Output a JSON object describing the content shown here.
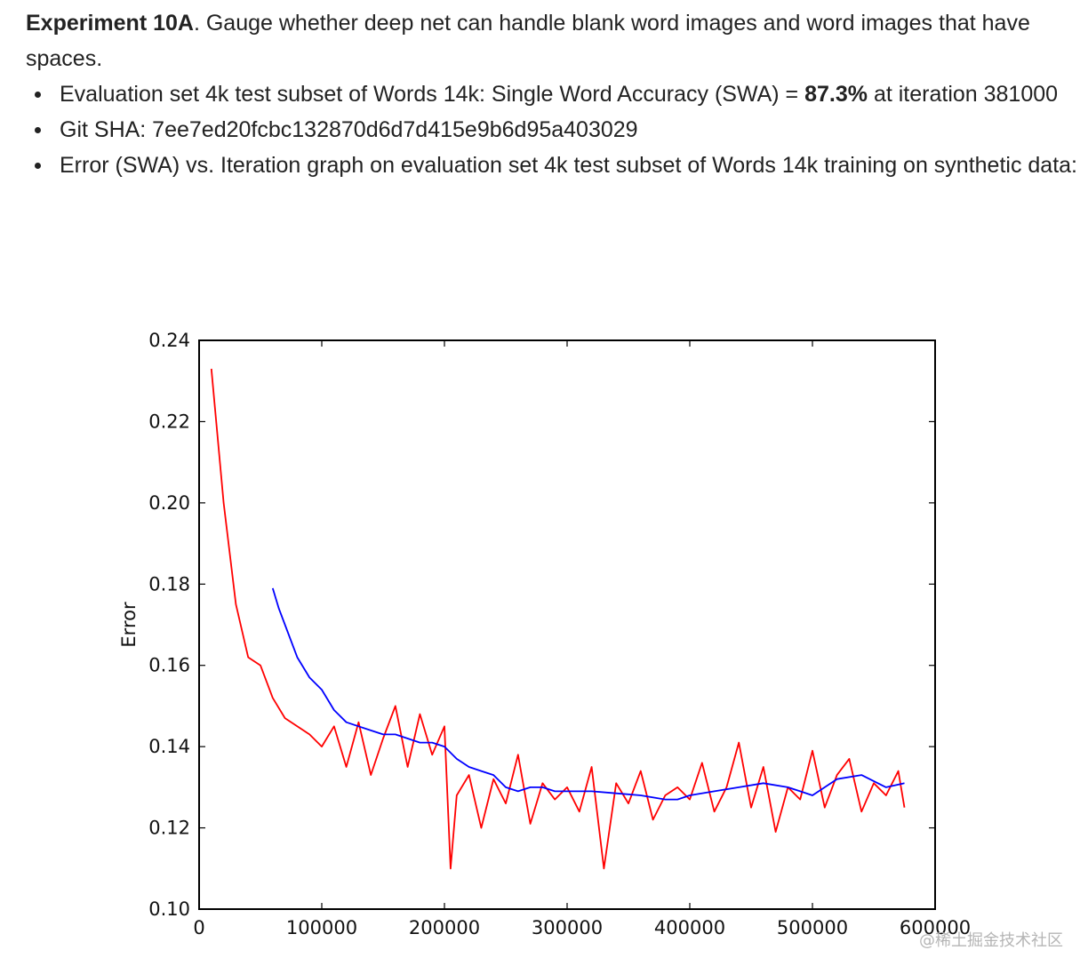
{
  "doc": {
    "heading_bold": "Experiment 10A",
    "heading_rest": ". Gauge whether deep net can handle blank word images and word images that have spaces.",
    "bullets": [
      {
        "text_before": "Evaluation set 4k test subset of Words 14k: Single Word Accuracy (SWA) = ",
        "bold": "87.3%",
        "text_after": "  at iteration 381000"
      },
      {
        "text": "Git SHA: 7ee7ed20fcbc132870d6d7d415e9b6d95a403029"
      },
      {
        "text": "Error (SWA) vs. Iteration graph on evaluation set 4k test subset of Words 14k training on synthetic data:"
      }
    ]
  },
  "chart_data": {
    "type": "line",
    "title": "",
    "xlabel": "",
    "ylabel": "Error",
    "xlim": [
      0,
      600000
    ],
    "ylim": [
      0.1,
      0.24
    ],
    "x_ticks": [
      "0",
      "100000",
      "200000",
      "300000",
      "400000",
      "500000",
      "600000"
    ],
    "y_ticks": [
      "0.10",
      "0.12",
      "0.14",
      "0.16",
      "0.18",
      "0.20",
      "0.22",
      "0.24"
    ],
    "grid": false,
    "legend": "none",
    "series": [
      {
        "color": "#ff0000",
        "x": [
          10000,
          20000,
          30000,
          40000,
          50000,
          60000,
          70000,
          80000,
          90000,
          100000,
          110000,
          120000,
          130000,
          140000,
          150000,
          160000,
          170000,
          180000,
          190000,
          200000,
          205000,
          210000,
          220000,
          230000,
          240000,
          250000,
          260000,
          270000,
          280000,
          290000,
          300000,
          310000,
          320000,
          330000,
          340000,
          350000,
          360000,
          370000,
          380000,
          390000,
          400000,
          410000,
          420000,
          430000,
          440000,
          450000,
          460000,
          470000,
          480000,
          490000,
          500000,
          510000,
          520000,
          530000,
          540000,
          550000,
          560000,
          570000,
          575000
        ],
        "y": [
          0.233,
          0.2,
          0.175,
          0.162,
          0.16,
          0.152,
          0.147,
          0.145,
          0.143,
          0.14,
          0.145,
          0.135,
          0.146,
          0.133,
          0.142,
          0.15,
          0.135,
          0.148,
          0.138,
          0.145,
          0.11,
          0.128,
          0.133,
          0.12,
          0.132,
          0.126,
          0.138,
          0.121,
          0.131,
          0.127,
          0.13,
          0.124,
          0.135,
          0.11,
          0.131,
          0.126,
          0.134,
          0.122,
          0.128,
          0.13,
          0.127,
          0.136,
          0.124,
          0.13,
          0.141,
          0.125,
          0.135,
          0.119,
          0.13,
          0.127,
          0.139,
          0.125,
          0.133,
          0.137,
          0.124,
          0.131,
          0.128,
          0.134,
          0.125
        ]
      },
      {
        "color": "#0000ff",
        "x": [
          60000,
          65000,
          70000,
          80000,
          90000,
          100000,
          110000,
          120000,
          130000,
          140000,
          150000,
          160000,
          170000,
          180000,
          190000,
          200000,
          210000,
          220000,
          230000,
          240000,
          250000,
          260000,
          270000,
          280000,
          290000,
          300000,
          320000,
          340000,
          360000,
          380000,
          390000,
          400000,
          420000,
          440000,
          460000,
          480000,
          490000,
          500000,
          510000,
          520000,
          540000,
          560000,
          575000
        ],
        "y": [
          0.179,
          0.174,
          0.17,
          0.162,
          0.157,
          0.154,
          0.149,
          0.146,
          0.145,
          0.144,
          0.143,
          0.143,
          0.142,
          0.141,
          0.141,
          0.14,
          0.137,
          0.135,
          0.134,
          0.133,
          0.13,
          0.129,
          0.13,
          0.13,
          0.129,
          0.129,
          0.129,
          0.1285,
          0.128,
          0.127,
          0.127,
          0.128,
          0.129,
          0.13,
          0.131,
          0.13,
          0.129,
          0.128,
          0.13,
          0.132,
          0.133,
          0.13,
          0.131
        ]
      }
    ]
  },
  "watermark": "@稀土掘金技术社区"
}
